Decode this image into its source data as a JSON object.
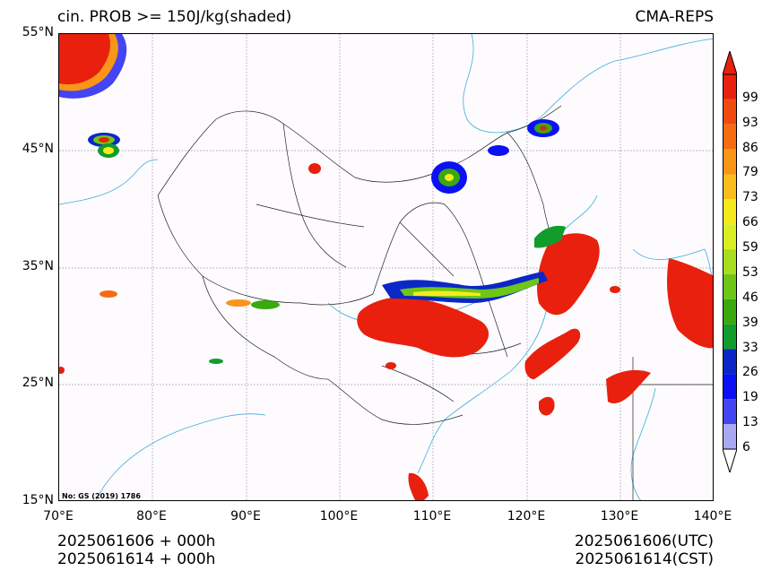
{
  "header": {
    "title_left": "cin. PROB >= 150J/kg(shaded)",
    "title_right": "CMA-REPS"
  },
  "map": {
    "lat_labels": [
      "55°N",
      "45°N",
      "35°N",
      "25°N",
      "15°N"
    ],
    "lon_labels": [
      "70°E",
      "80°E",
      "90°E",
      "100°E",
      "110°E",
      "120°E",
      "130°E",
      "140°E"
    ],
    "footnote": "No: GS (2019) 1786"
  },
  "colorbar": {
    "labels": [
      "99",
      "93",
      "86",
      "79",
      "73",
      "66",
      "59",
      "53",
      "46",
      "39",
      "33",
      "26",
      "19",
      "13",
      "6"
    ],
    "colors": [
      "#e8200d",
      "#f04a10",
      "#f56c12",
      "#f99517",
      "#fbbd1b",
      "#f6ea1e",
      "#d9ee23",
      "#a9de1f",
      "#6ec717",
      "#3aa80f",
      "#129c2c",
      "#0b27c8",
      "#0b10f5",
      "#4444f2",
      "#a9a9f3"
    ],
    "over_color": "#e8200d",
    "under_color": "#ffffff"
  },
  "footer": {
    "left_line1": "2025061606  +  000h",
    "left_line2": "2025061614  +  000h",
    "right_line1": "2025061606(UTC)",
    "right_line2": "2025061614(CST)"
  }
}
